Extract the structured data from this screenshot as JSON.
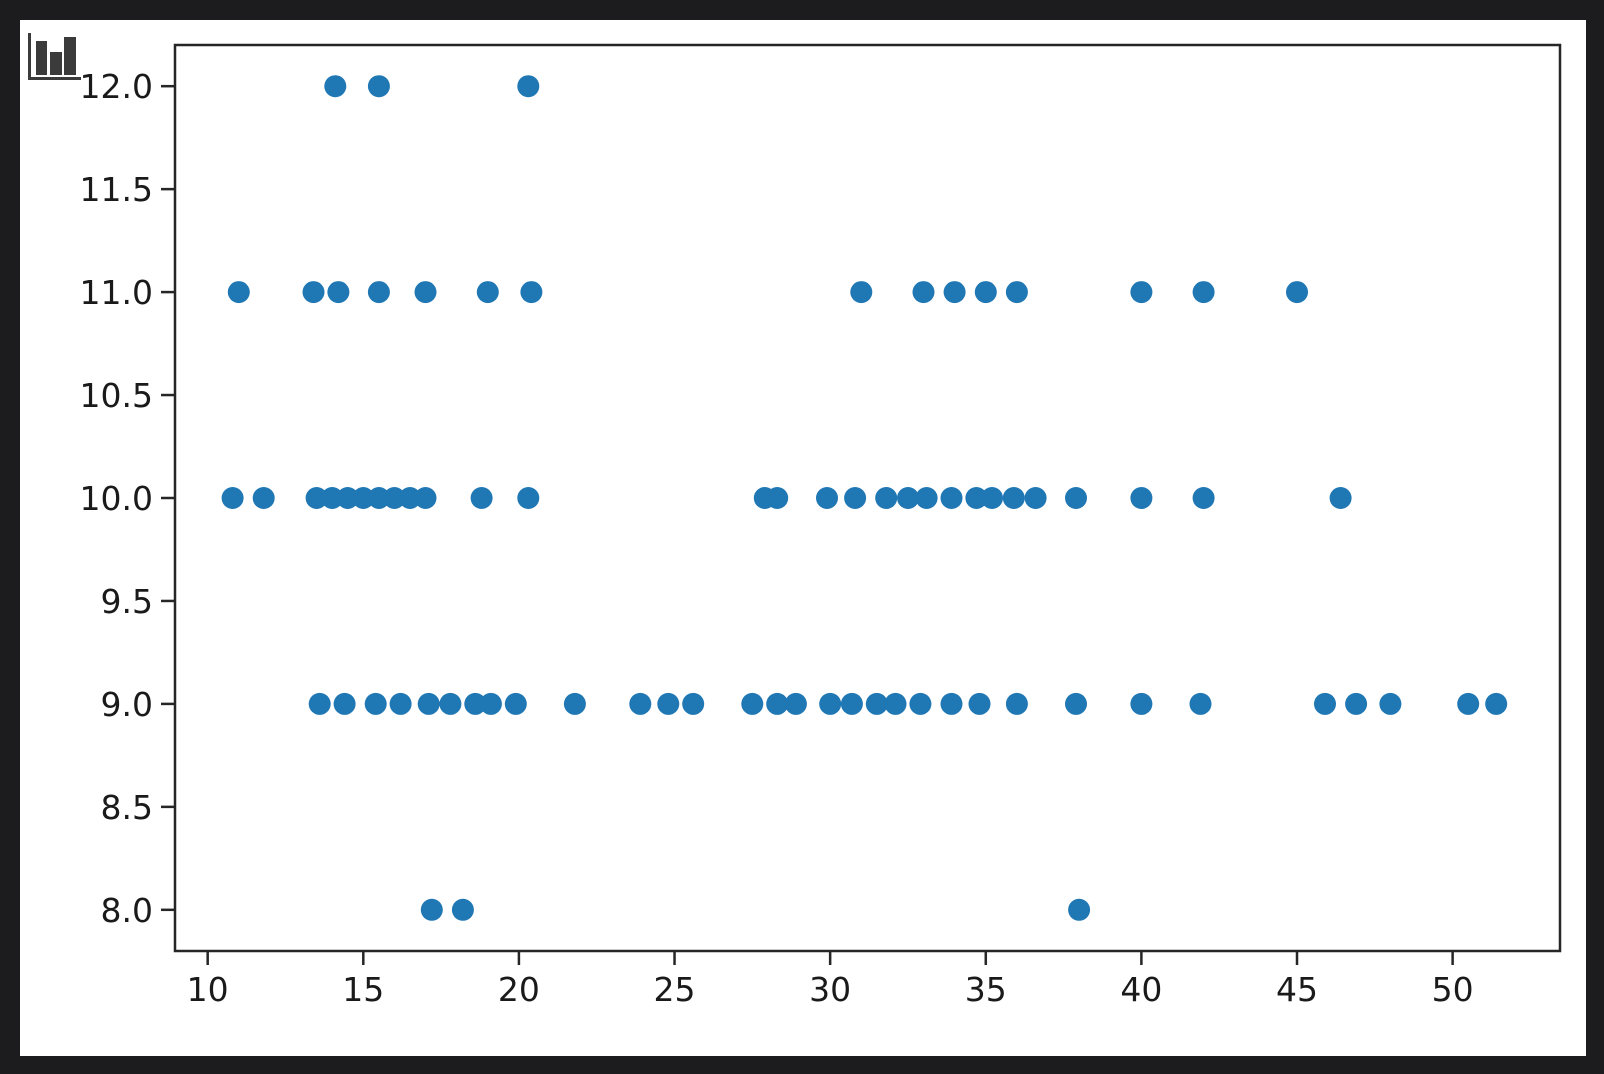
{
  "window": {
    "background_color": "#1c1c1e",
    "figure_background_color": "#ffffff"
  },
  "icon": {
    "name": "bar-chart-icon",
    "color": "#3b3b3b"
  },
  "chart_data": {
    "type": "scatter",
    "title": "",
    "xlabel": "",
    "ylabel": "",
    "grid": false,
    "legend": null,
    "marker_color": "#1f77b4",
    "marker_radius": 11,
    "spine_color": "#262626",
    "tick_color": "#262626",
    "xlim": [
      8.95,
      53.45
    ],
    "ylim": [
      7.8,
      12.2
    ],
    "x_ticks": [
      10,
      15,
      20,
      25,
      30,
      35,
      40,
      45,
      50
    ],
    "x_tick_labels": [
      "10",
      "15",
      "20",
      "25",
      "30",
      "35",
      "40",
      "45",
      "50"
    ],
    "y_ticks": [
      8.0,
      8.5,
      9.0,
      9.5,
      10.0,
      10.5,
      11.0,
      11.5,
      12.0
    ],
    "y_tick_labels": [
      "8.0",
      "8.5",
      "9.0",
      "9.5",
      "10.0",
      "10.5",
      "11.0",
      "11.5",
      "12.0"
    ],
    "points": [
      [
        14.1,
        12
      ],
      [
        15.5,
        12
      ],
      [
        20.3,
        12
      ],
      [
        11,
        11
      ],
      [
        13.4,
        11
      ],
      [
        14.2,
        11
      ],
      [
        15.5,
        11
      ],
      [
        17,
        11
      ],
      [
        19,
        11
      ],
      [
        20.4,
        11
      ],
      [
        31,
        11
      ],
      [
        33,
        11
      ],
      [
        34,
        11
      ],
      [
        35,
        11
      ],
      [
        36,
        11
      ],
      [
        40,
        11
      ],
      [
        42,
        11
      ],
      [
        45,
        11
      ],
      [
        10.8,
        10
      ],
      [
        11.8,
        10
      ],
      [
        13.5,
        10
      ],
      [
        14,
        10
      ],
      [
        14.5,
        10
      ],
      [
        15,
        10
      ],
      [
        15.5,
        10
      ],
      [
        16,
        10
      ],
      [
        16.5,
        10
      ],
      [
        17,
        10
      ],
      [
        18.8,
        10
      ],
      [
        20.3,
        10
      ],
      [
        27.9,
        10
      ],
      [
        28.3,
        10
      ],
      [
        29.9,
        10
      ],
      [
        30.8,
        10
      ],
      [
        31.8,
        10
      ],
      [
        32.5,
        10
      ],
      [
        33.1,
        10
      ],
      [
        33.9,
        10
      ],
      [
        34.7,
        10
      ],
      [
        35.2,
        10
      ],
      [
        35.9,
        10
      ],
      [
        36.6,
        10
      ],
      [
        37.9,
        10
      ],
      [
        40,
        10
      ],
      [
        42,
        10
      ],
      [
        46.4,
        10
      ],
      [
        13.6,
        9
      ],
      [
        14.4,
        9
      ],
      [
        15.4,
        9
      ],
      [
        16.2,
        9
      ],
      [
        17.1,
        9
      ],
      [
        17.8,
        9
      ],
      [
        18.6,
        9
      ],
      [
        19.1,
        9
      ],
      [
        19.9,
        9
      ],
      [
        21.8,
        9
      ],
      [
        23.9,
        9
      ],
      [
        24.8,
        9
      ],
      [
        25.6,
        9
      ],
      [
        27.5,
        9
      ],
      [
        28.3,
        9
      ],
      [
        28.9,
        9
      ],
      [
        30,
        9
      ],
      [
        30.7,
        9
      ],
      [
        31.5,
        9
      ],
      [
        32.1,
        9
      ],
      [
        32.9,
        9
      ],
      [
        33.9,
        9
      ],
      [
        34.8,
        9
      ],
      [
        36,
        9
      ],
      [
        37.9,
        9
      ],
      [
        40,
        9
      ],
      [
        41.9,
        9
      ],
      [
        45.9,
        9
      ],
      [
        46.9,
        9
      ],
      [
        48,
        9
      ],
      [
        50.5,
        9
      ],
      [
        51.4,
        9
      ],
      [
        17.2,
        8
      ],
      [
        18.2,
        8
      ],
      [
        38,
        8
      ]
    ]
  }
}
